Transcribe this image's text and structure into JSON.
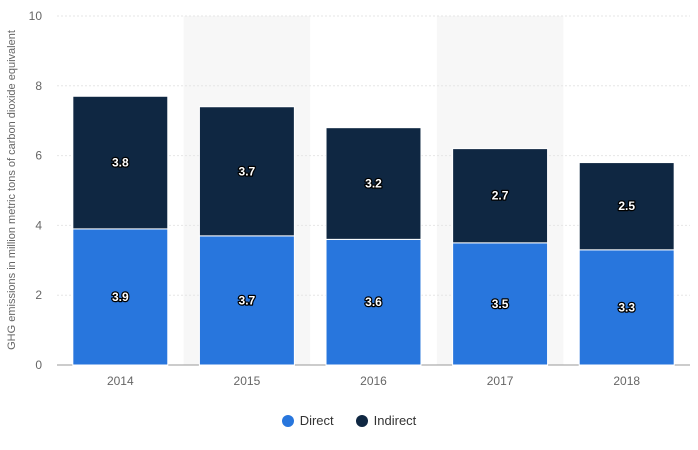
{
  "chart_data": {
    "type": "bar",
    "stacked": true,
    "categories": [
      "2014",
      "2015",
      "2016",
      "2017",
      "2018"
    ],
    "series": [
      {
        "name": "Direct",
        "values": [
          3.9,
          3.7,
          3.6,
          3.5,
          3.3
        ],
        "color": "#2876dd"
      },
      {
        "name": "Indirect",
        "values": [
          3.8,
          3.7,
          3.2,
          2.7,
          2.5
        ],
        "color": "#0f2742"
      }
    ],
    "data_labels": {
      "Direct": [
        "3.9",
        "3.7",
        "3.6",
        "3.5",
        "3.3"
      ],
      "Indirect": [
        "3.8",
        "3.7",
        "3.2",
        "2.7",
        "2.5"
      ]
    },
    "title": "",
    "xlabel": "",
    "ylabel": "GHG emissions in million metric tons of carbon dioxide equivalent",
    "ylim": [
      0,
      10
    ],
    "yticks": [
      "0",
      "2",
      "4",
      "6",
      "8",
      "10"
    ],
    "grid": true,
    "alternating_column_shading": true,
    "legend_position": "bottom-center"
  }
}
